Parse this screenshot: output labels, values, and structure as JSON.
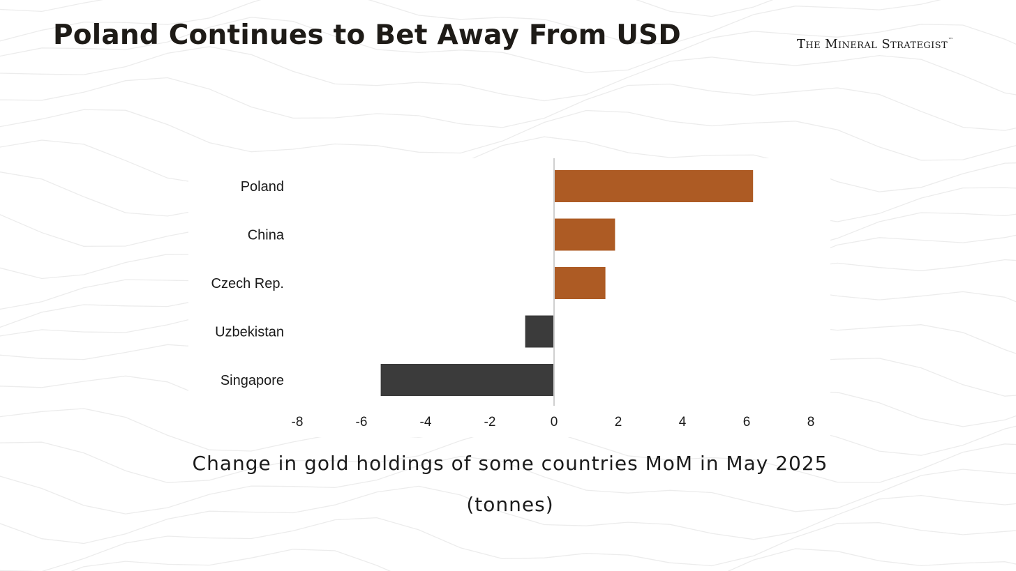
{
  "header": {
    "title": "Poland Continues to Bet Away From USD",
    "brand_text": "The Mineral Strategist",
    "brand_mark": "™"
  },
  "caption": {
    "line1": "Change in gold holdings of some countries MoM in May 2025",
    "line2": "(tonnes)"
  },
  "colors": {
    "positive": "#ad5b24",
    "negative": "#3b3b3b",
    "axis_line": "#cfcfcf",
    "label_text": "#1a1a1a",
    "background_contours": "#ececec"
  },
  "chart_data": {
    "type": "bar",
    "orientation": "horizontal",
    "categories": [
      "Poland",
      "China",
      "Czech Rep.",
      "Uzbekistan",
      "Singapore"
    ],
    "values": [
      6.2,
      1.9,
      1.6,
      -0.9,
      -5.4
    ],
    "xlim": [
      -8,
      8
    ],
    "xticks": [
      "-8",
      "-6",
      "-4",
      "-2",
      "0",
      "2",
      "4",
      "6",
      "8"
    ],
    "xlabel": "",
    "ylabel": "",
    "grid": false,
    "legend": "none"
  }
}
